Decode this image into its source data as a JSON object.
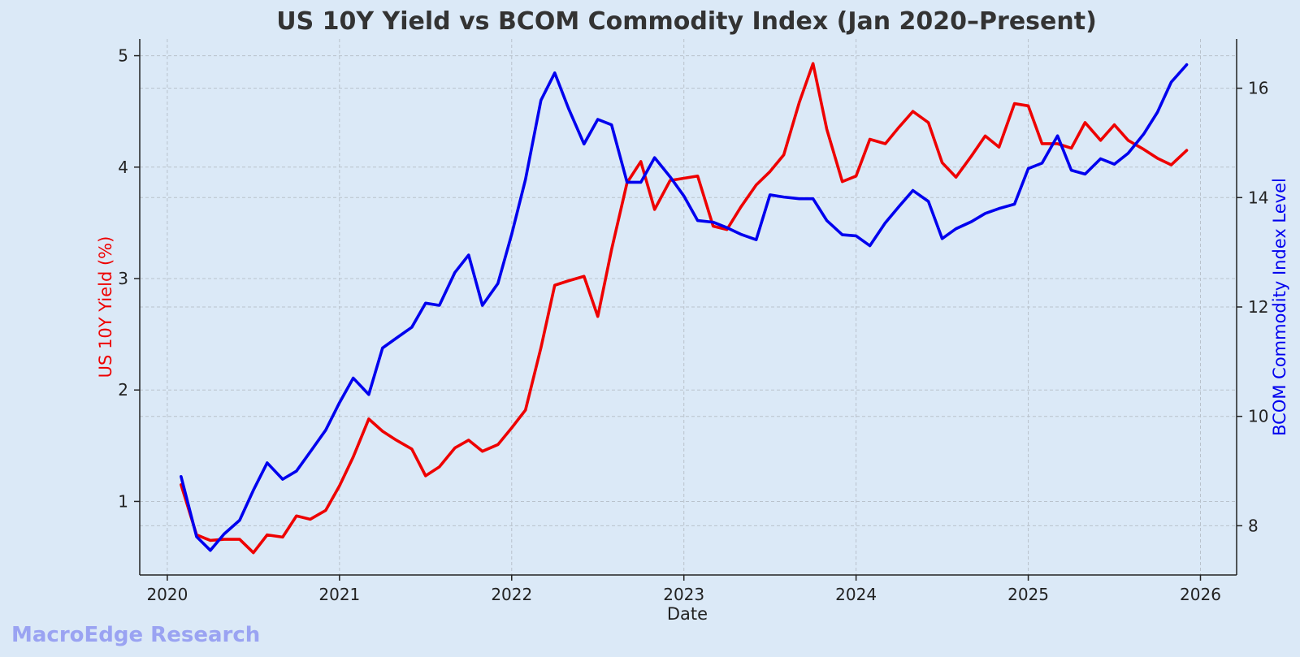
{
  "chart_data": {
    "type": "line",
    "title": "US 10Y Yield vs BCOM Commodity Index (Jan 2020–Present)",
    "xlabel": "Date",
    "ylabel_left": "US 10Y Yield (%)",
    "ylabel_right": "BCOM Commodity Index Level",
    "x_ticks": [
      "2020",
      "2021",
      "2022",
      "2023",
      "2024",
      "2025",
      "2026"
    ],
    "y_left_ticks": [
      1,
      2,
      3,
      4,
      5
    ],
    "y_right_ticks": [
      8,
      10,
      12,
      14,
      16
    ],
    "xlim": [
      2019.84,
      2026.21
    ],
    "ylim_left": [
      0.34,
      5.15
    ],
    "ylim_right": [
      7.1,
      16.9
    ],
    "grid": true,
    "x": [
      2020.08,
      2020.17,
      2020.25,
      2020.33,
      2020.42,
      2020.5,
      2020.58,
      2020.67,
      2020.75,
      2020.83,
      2020.92,
      2021.0,
      2021.08,
      2021.17,
      2021.25,
      2021.33,
      2021.42,
      2021.5,
      2021.58,
      2021.67,
      2021.75,
      2021.83,
      2021.92,
      2022.0,
      2022.08,
      2022.17,
      2022.25,
      2022.33,
      2022.42,
      2022.5,
      2022.58,
      2022.67,
      2022.75,
      2022.83,
      2022.92,
      2023.0,
      2023.08,
      2023.17,
      2023.25,
      2023.33,
      2023.42,
      2023.5,
      2023.58,
      2023.67,
      2023.75,
      2023.83,
      2023.92,
      2024.0,
      2024.08,
      2024.17,
      2024.25,
      2024.33,
      2024.42,
      2024.5,
      2024.58,
      2024.67,
      2024.75,
      2024.83,
      2024.92,
      2025.0,
      2025.08,
      2025.17,
      2025.25,
      2025.33,
      2025.42,
      2025.5,
      2025.58,
      2025.67,
      2025.75,
      2025.83,
      2025.92
    ],
    "series": [
      {
        "name": "US 10Y Yield (%)",
        "axis": "left",
        "color": "#ee0000",
        "values": [
          1.15,
          0.7,
          0.65,
          0.66,
          0.66,
          0.54,
          0.7,
          0.68,
          0.87,
          0.84,
          0.92,
          1.14,
          1.4,
          1.74,
          1.63,
          1.55,
          1.47,
          1.23,
          1.31,
          1.48,
          1.55,
          1.45,
          1.51,
          1.66,
          1.82,
          2.38,
          2.94,
          2.98,
          3.02,
          2.66,
          3.26,
          3.86,
          4.05,
          3.62,
          3.88,
          3.9,
          3.92,
          3.47,
          3.44,
          3.64,
          3.84,
          3.96,
          4.11,
          4.58,
          4.93,
          4.34,
          3.87,
          3.92,
          4.25,
          4.21,
          4.36,
          4.5,
          4.4,
          4.04,
          3.91,
          4.1,
          4.28,
          4.18,
          4.57,
          4.55,
          4.21,
          4.21,
          4.17,
          4.4,
          4.24,
          4.38,
          4.24,
          4.16,
          4.08,
          4.02,
          4.15
        ]
      },
      {
        "name": "BCOM Commodity Index Level",
        "axis": "right",
        "color": "#0000ee",
        "values": [
          8.9,
          7.8,
          7.55,
          7.85,
          8.1,
          8.65,
          9.15,
          8.85,
          9.0,
          9.35,
          9.75,
          10.25,
          10.7,
          10.4,
          11.25,
          11.43,
          11.63,
          12.07,
          12.03,
          12.63,
          12.95,
          12.03,
          12.43,
          13.33,
          14.33,
          15.78,
          16.28,
          15.63,
          14.98,
          15.43,
          15.33,
          14.28,
          14.28,
          14.73,
          14.38,
          14.03,
          13.58,
          13.55,
          13.45,
          13.33,
          13.23,
          14.05,
          14.01,
          13.98,
          13.98,
          13.58,
          13.32,
          13.3,
          13.12,
          13.54,
          13.84,
          14.13,
          13.93,
          13.25,
          13.43,
          13.56,
          13.71,
          13.8,
          13.88,
          14.53,
          14.63,
          15.13,
          14.5,
          14.43,
          14.71,
          14.61,
          14.81,
          15.16,
          15.56,
          16.11,
          16.43
        ]
      }
    ]
  },
  "watermark": "MacroEdge Research"
}
